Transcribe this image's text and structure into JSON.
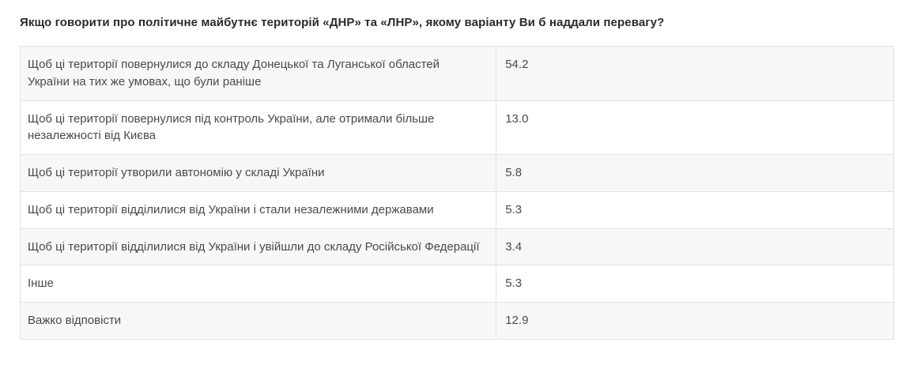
{
  "page": {
    "title": "Якщо говорити про політичне майбутнє територій «ДНР» та «ЛНР», якому варіанту Ви б наддали перевагу?"
  },
  "colors": {
    "row_alt_background": "#f7f7f7",
    "row_background": "#ffffff",
    "border": "#e2e2e2",
    "cell_text": "#4a4a4a",
    "title_text": "#2b2b2b"
  },
  "chart_data": {
    "type": "table",
    "title": "Якщо говорити про політичне майбутнє територій «ДНР» та «ЛНР», якому варіанту Ви б наддали перевагу?",
    "layout": {
      "zebra_striping": true,
      "label_column_width_pct": 54.5,
      "value_column_width_pct": 45.5
    },
    "rows": [
      {
        "label": "Щоб ці території повернулися до складу Донецької та Луганської областей України на тих же умовах, що були раніше",
        "value": "54.2"
      },
      {
        "label": "Щоб ці території повернулися під контроль України, але отримали більше незалежності від Києва",
        "value": "13.0"
      },
      {
        "label": "Щоб ці території утворили автономію у складі України",
        "value": "5.8"
      },
      {
        "label": "Щоб ці території відділилися від України і стали незалежними державами",
        "value": "5.3"
      },
      {
        "label": "Щоб ці території відділилися від України і увійшли до складу Російської Федерації",
        "value": "3.4"
      },
      {
        "label": "Інше",
        "value": "5.3"
      },
      {
        "label": "Важко відповісти",
        "value": "12.9"
      }
    ]
  }
}
